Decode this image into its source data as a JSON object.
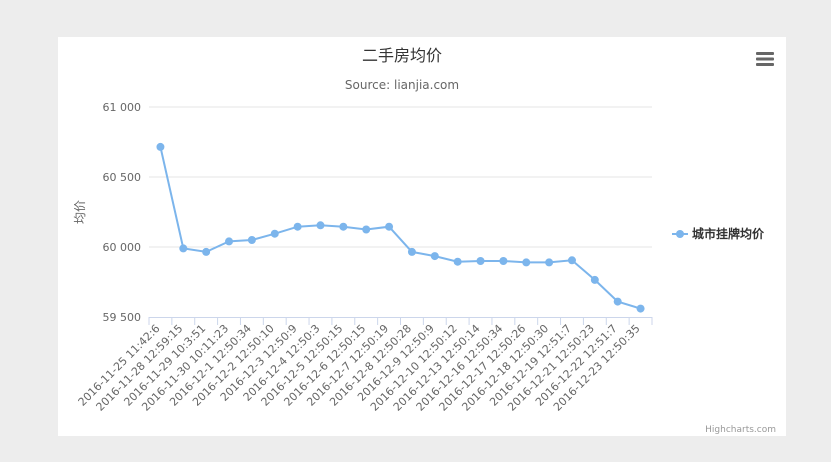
{
  "chart_data": {
    "type": "line",
    "title": "二手房均价",
    "subtitle": "Source: lianjia.com",
    "ylabel": "均价",
    "xlabel": "",
    "ylim": [
      59500,
      61000
    ],
    "yticks": [
      59500,
      60000,
      60500,
      61000
    ],
    "ytick_labels": [
      "59 500",
      "60 000",
      "60 500",
      "61 000"
    ],
    "grid": true,
    "legend_position": "right",
    "categories": [
      "2016-11-25 11:42:6",
      "2016-11-28 12:59:15",
      "2016-11-29 10:3:51",
      "2016-11-30 10:11:23",
      "2016-12-1 12:50:34",
      "2016-12-2 12:50:10",
      "2016-12-3 12:50:9",
      "2016-12-4 12:50:3",
      "2016-12-5 12:50:15",
      "2016-12-6 12:50:15",
      "2016-12-7 12:50:19",
      "2016-12-8 12:50:28",
      "2016-12-9 12:50:9",
      "2016-12-10 12:50:12",
      "2016-12-13 12:50:14",
      "2016-12-16 12:50:34",
      "2016-12-17 12:50:26",
      "2016-12-18 12:50:30",
      "2016-12-19 12:51:7",
      "2016-12-21 12:50:23",
      "2016-12-22 12:51:7",
      "2016-12-23 12:50:35"
    ],
    "series": [
      {
        "name": "城市挂牌均价",
        "color": "#7cb5ec",
        "values": [
          60715,
          59990,
          59965,
          60040,
          60050,
          60095,
          60145,
          60155,
          60145,
          60125,
          60145,
          59965,
          59935,
          59895,
          59900,
          59900,
          59890,
          59890,
          59905,
          59765,
          59610,
          59560
        ]
      }
    ]
  },
  "credits": "Highcharts.com",
  "colors": {
    "axis": "#ccd6eb",
    "grid": "#e6e6e6",
    "text": "#666666",
    "title": "#333333"
  },
  "menu_icon": "hamburger-menu-icon"
}
